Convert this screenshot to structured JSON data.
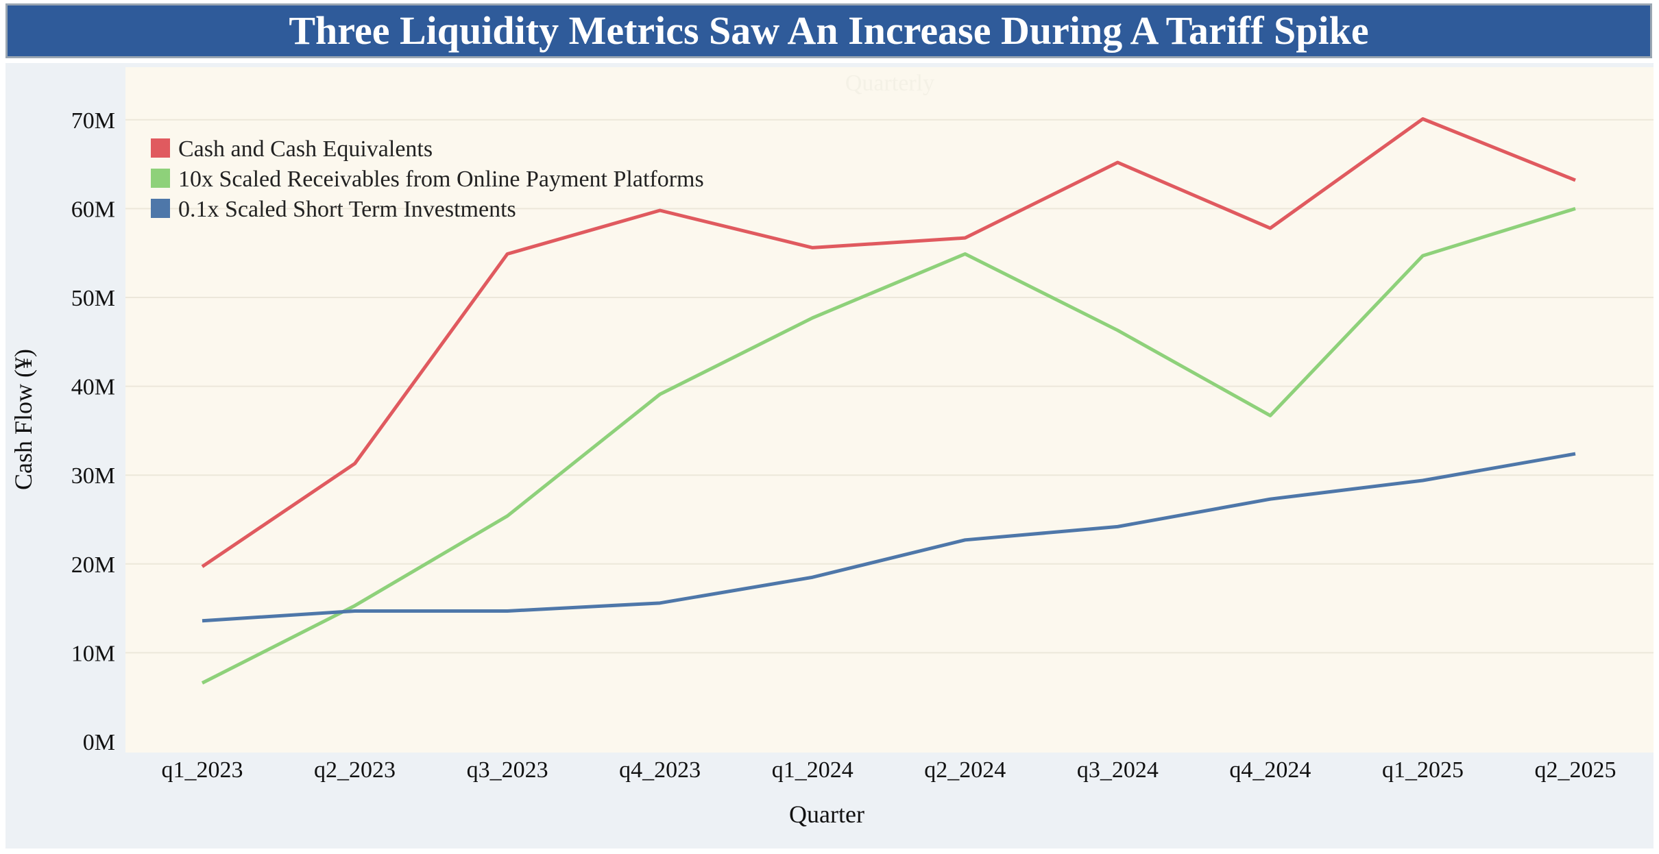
{
  "title": "Three Liquidity Metrics Saw An Increase During A Tariff Spike",
  "colors": {
    "title_bg": "#2f5b9a",
    "plot_bg": "#fcf8ee",
    "frame_bg": "#edf1f5",
    "cash": "#e05a5f",
    "receivables": "#8ed17a",
    "investments": "#4e77a9"
  },
  "chart_data": {
    "type": "line",
    "title": "Three Liquidity Metrics Saw An Increase During A Tariff Spike",
    "subtitle": "Quarterly",
    "xlabel": "Quarter",
    "ylabel": "Cash Flow (¥)",
    "ylim": [
      0,
      72000000
    ],
    "yticks": [
      0,
      10000000,
      20000000,
      30000000,
      40000000,
      50000000,
      60000000,
      70000000
    ],
    "ytick_labels": [
      "0M",
      "10M",
      "20M",
      "30M",
      "40M",
      "50M",
      "60M",
      "70M"
    ],
    "categories": [
      "q1_2023",
      "q2_2023",
      "q3_2023",
      "q4_2023",
      "q1_2024",
      "q2_2024",
      "q3_2024",
      "q4_2024",
      "q1_2025",
      "q2_2025"
    ],
    "grid": true,
    "legend_position": "top-left",
    "series": [
      {
        "name": "Cash and Cash Equivalents",
        "color": "#e05a5f",
        "values": [
          19700000,
          31300000,
          54900000,
          59800000,
          55600000,
          56700000,
          65200000,
          57800000,
          70100000,
          63200000
        ]
      },
      {
        "name": "10x Scaled Receivables from Online Payment Platforms",
        "color": "#8ed17a",
        "values": [
          6600000,
          15300000,
          25400000,
          39100000,
          47700000,
          54900000,
          46300000,
          36700000,
          54700000,
          60000000
        ]
      },
      {
        "name": "0.1x Scaled Short Term Investments",
        "color": "#4e77a9",
        "values": [
          13600000,
          14700000,
          14700000,
          15600000,
          18500000,
          22700000,
          24200000,
          27300000,
          29400000,
          32400000
        ]
      }
    ]
  }
}
